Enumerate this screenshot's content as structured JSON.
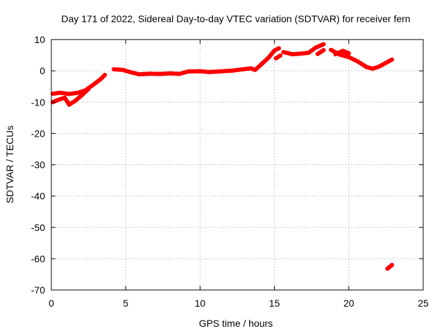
{
  "chart_data": {
    "type": "scatter",
    "title": "Day 171 of 2022, Sidereal Day-to-day VTEC variation (SDTVAR) for receiver fern",
    "xlabel": "GPS time / hours",
    "ylabel": "SDTVAR / TECUs",
    "xlim": [
      0,
      25
    ],
    "ylim": [
      -70,
      10
    ],
    "xticks": [
      0,
      5,
      10,
      15,
      20,
      25
    ],
    "yticks": [
      -70,
      -60,
      -50,
      -40,
      -30,
      -20,
      -10,
      0,
      10
    ],
    "grid": true,
    "legend": "none",
    "series": [
      {
        "color": "#ff0000",
        "segments": [
          [
            [
              0.1,
              -7.3
            ],
            [
              0.6,
              -7.0
            ],
            [
              1.2,
              -7.4
            ],
            [
              1.8,
              -7.0
            ],
            [
              2.3,
              -6.2
            ],
            [
              2.8,
              -4.5
            ],
            [
              3.3,
              -2.7
            ],
            [
              3.6,
              -1.3
            ]
          ],
          [
            [
              0.1,
              -10.0
            ],
            [
              0.5,
              -9.2
            ],
            [
              0.9,
              -8.6
            ],
            [
              1.2,
              -10.8
            ],
            [
              1.6,
              -9.6
            ],
            [
              2.0,
              -8.0
            ],
            [
              2.5,
              -5.8
            ]
          ],
          [
            [
              4.2,
              0.5
            ],
            [
              4.8,
              0.3
            ],
            [
              5.3,
              -0.4
            ],
            [
              5.9,
              -1.1
            ],
            [
              6.6,
              -0.9
            ],
            [
              7.3,
              -1.0
            ],
            [
              8.0,
              -0.8
            ],
            [
              8.6,
              -1.0
            ],
            [
              9.2,
              -0.2
            ],
            [
              10.0,
              -0.1
            ],
            [
              10.6,
              -0.4
            ],
            [
              11.3,
              -0.2
            ],
            [
              12.2,
              0.1
            ],
            [
              12.9,
              0.5
            ],
            [
              13.4,
              0.8
            ],
            [
              13.7,
              0.3
            ],
            [
              14.1,
              2.0
            ],
            [
              14.6,
              4.2
            ],
            [
              15.0,
              6.5
            ],
            [
              15.3,
              7.2
            ]
          ],
          [
            [
              15.1,
              4.0
            ],
            [
              15.4,
              4.9
            ]
          ],
          [
            [
              15.6,
              6.0
            ],
            [
              16.2,
              5.3
            ],
            [
              16.8,
              5.5
            ],
            [
              17.3,
              5.8
            ],
            [
              17.8,
              7.5
            ],
            [
              18.3,
              8.5
            ]
          ],
          [
            [
              17.9,
              5.4
            ],
            [
              18.3,
              6.6
            ]
          ],
          [
            [
              18.8,
              6.7
            ],
            [
              19.4,
              5.2
            ],
            [
              20.0,
              4.4
            ],
            [
              20.6,
              3.0
            ],
            [
              21.2,
              1.2
            ],
            [
              21.6,
              0.7
            ],
            [
              22.0,
              1.3
            ],
            [
              22.4,
              2.3
            ],
            [
              22.9,
              3.6
            ]
          ],
          [
            [
              19.1,
              5.3
            ],
            [
              19.6,
              6.4
            ],
            [
              20.0,
              5.6
            ]
          ],
          [
            [
              22.6,
              -63.2
            ],
            [
              22.9,
              -62.0
            ]
          ]
        ]
      }
    ]
  }
}
